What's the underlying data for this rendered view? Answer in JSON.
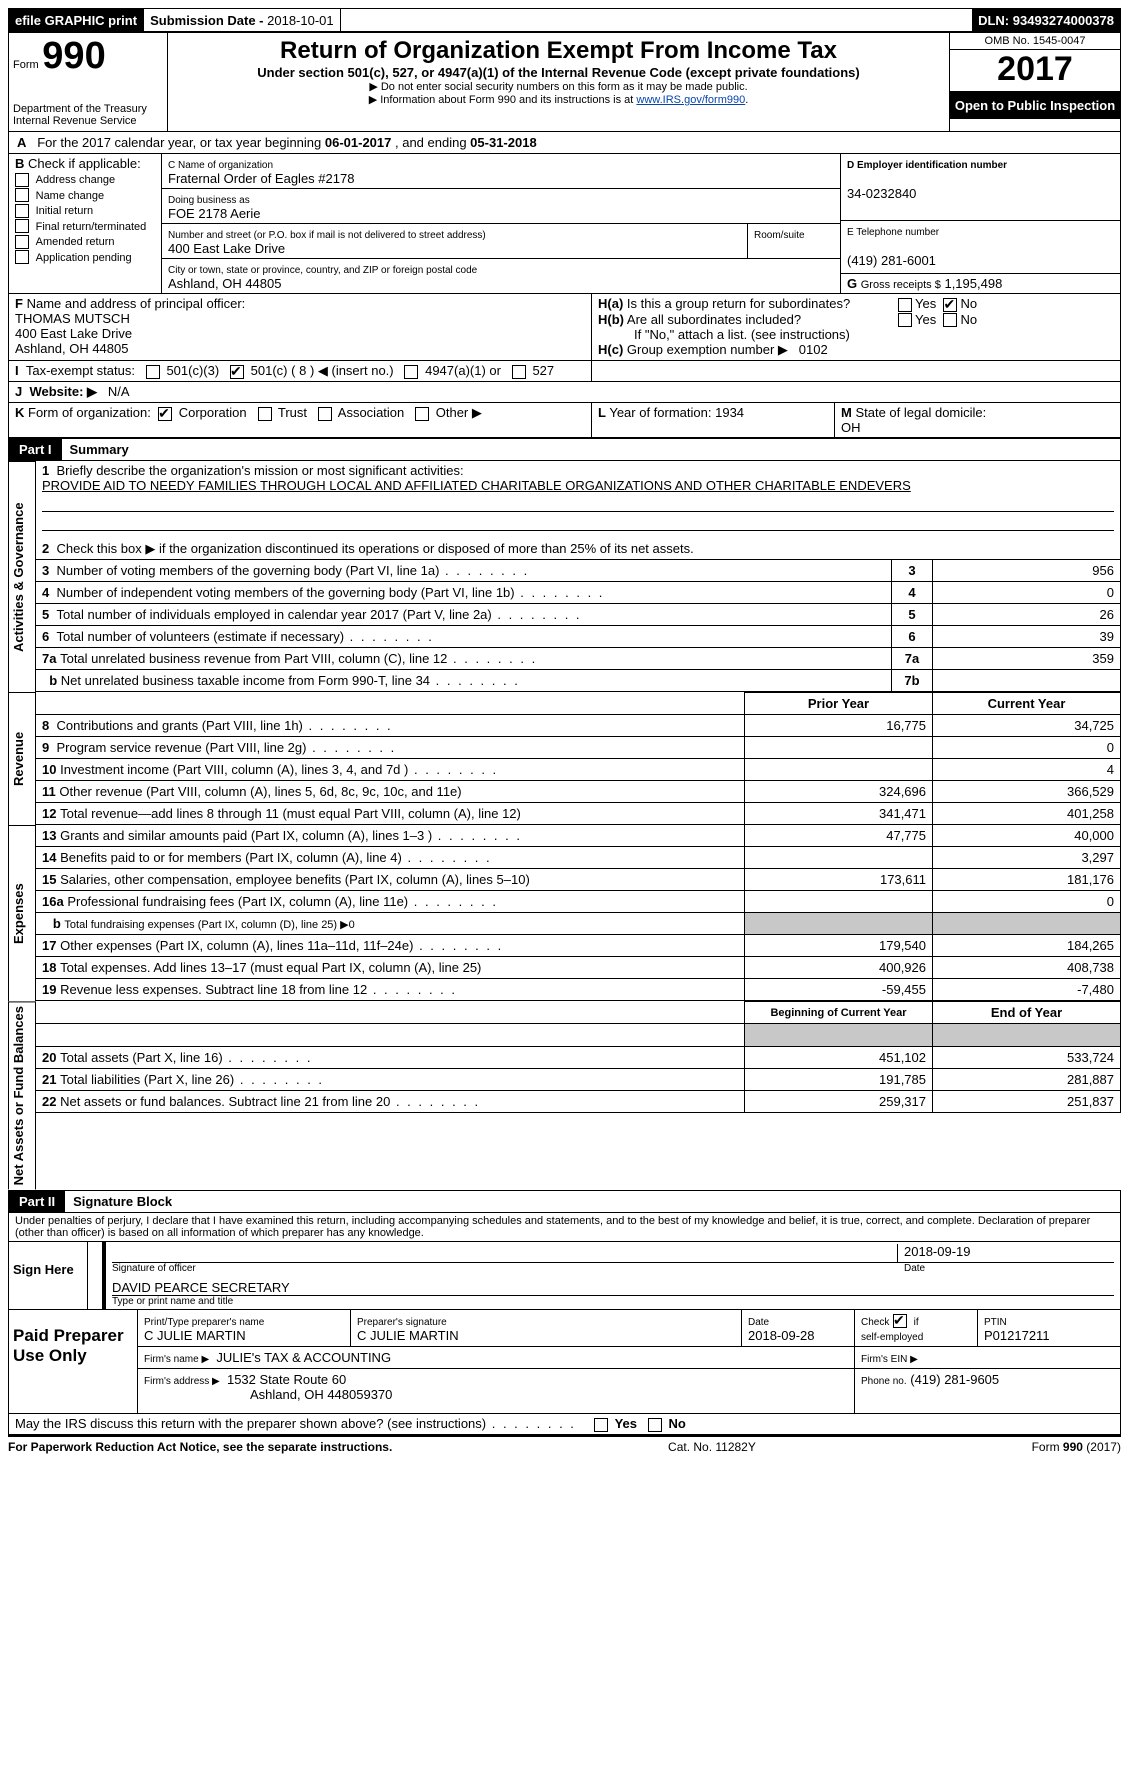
{
  "topbar": {
    "efile": "efile GRAPHIC print",
    "submission_label": "Submission Date -",
    "submission_date": "2018-10-01",
    "dln_label": "DLN:",
    "dln": "93493274000378"
  },
  "header": {
    "form_label": "Form",
    "form_no": "990",
    "dept1": "Department of the Treasury",
    "dept2": "Internal Revenue Service",
    "title": "Return of Organization Exempt From Income Tax",
    "subtitle": "Under section 501(c), 527, or 4947(a)(1) of the Internal Revenue Code (except private foundations)",
    "note1": "▶ Do not enter social security numbers on this form as it may be made public.",
    "note2_pre": "▶ Information about Form 990 and its instructions is at ",
    "note2_link": "www.IRS.gov/form990",
    "omb": "OMB No. 1545-0047",
    "year": "2017",
    "open": "Open to Public Inspection"
  },
  "periodline": {
    "a_label": "A",
    "text_pre": "For the 2017 calendar year, or tax year beginning ",
    "begin": "06-01-2017",
    "mid": " , and ending ",
    "end": "05-31-2018"
  },
  "blockB": {
    "label": "B",
    "check_if": "Check if applicable:",
    "opts": [
      "Address change",
      "Name change",
      "Initial return",
      "Final return/terminated",
      "Amended return",
      "Application pending"
    ]
  },
  "blockC": {
    "name_label": "C Name of organization",
    "name": "Fraternal Order of Eagles #2178",
    "dba_label": "Doing business as",
    "dba": "FOE 2178 Aerie",
    "street_label": "Number and street (or P.O. box if mail is not delivered to street address)",
    "room_label": "Room/suite",
    "street": "400 East Lake Drive",
    "city_label": "City or town, state or province, country, and ZIP or foreign postal code",
    "city": "Ashland, OH  44805"
  },
  "blockD": {
    "label": "D Employer identification number",
    "value": "34-0232840"
  },
  "blockE": {
    "label": "E Telephone number",
    "value": "(419) 281-6001"
  },
  "blockG": {
    "label": "G",
    "text": "Gross receipts $",
    "value": "1,195,498"
  },
  "blockF": {
    "label": "F",
    "text": "Name and address of principal officer:",
    "name": "THOMAS MUTSCH",
    "addr1": "400 East Lake Drive",
    "addr2": "Ashland, OH  44805"
  },
  "blockH": {
    "ha_label": "H(a)",
    "ha_text": "Is this a group return for subordinates?",
    "hb_label": "H(b)",
    "hb_text": "Are all subordinates included?",
    "hb_note": "If \"No,\" attach a list. (see instructions)",
    "hc_label": "H(c)",
    "hc_text": "Group exemption number ▶",
    "hc_value": "0102",
    "yes": "Yes",
    "no": "No"
  },
  "lineI": {
    "label": "I",
    "text": "Tax-exempt status:",
    "opts": {
      "a": "501(c)(3)",
      "b": "501(c) (",
      "b2": ") ◀ (insert no.)",
      "bval": "8",
      "c": "4947(a)(1) or",
      "d": "527"
    }
  },
  "lineJ": {
    "label": "J",
    "text": "Website: ▶",
    "value": "N/A"
  },
  "lineK": {
    "label": "K",
    "text": "Form of organization:",
    "opts": [
      "Corporation",
      "Trust",
      "Association",
      "Other ▶"
    ]
  },
  "lineL": {
    "label": "L",
    "text": "Year of formation:",
    "value": "1934"
  },
  "lineM": {
    "label": "M",
    "text": "State of legal domicile:",
    "value": "OH"
  },
  "part1": {
    "label": "Part I",
    "title": "Summary"
  },
  "vlabels": {
    "act": "Activities & Governance",
    "rev": "Revenue",
    "exp": "Expenses",
    "net": "Net Assets or Fund Balances"
  },
  "gov": {
    "l1": "Briefly describe the organization's mission or most significant activities:",
    "l1v": "PROVIDE AID TO NEEDY FAMILIES THROUGH LOCAL AND AFFILIATED CHARITABLE ORGANIZATIONS AND OTHER CHARITABLE ENDEVERS",
    "l2": "Check this box ▶           if the organization discontinued its operations or disposed of more than 25% of its net assets.",
    "l3": "Number of voting members of the governing body (Part VI, line 1a)",
    "l4": "Number of independent voting members of the governing body (Part VI, line 1b)",
    "l5": "Total number of individuals employed in calendar year 2017 (Part V, line 2a)",
    "l6": "Total number of volunteers (estimate if necessary)",
    "l7a": "Total unrelated business revenue from Part VIII, column (C), line 12",
    "l7b": "Net unrelated business taxable income from Form 990-T, line 34",
    "v3": "956",
    "v4": "0",
    "v5": "26",
    "v6": "39",
    "v7a": "359",
    "v7b": ""
  },
  "colheads": {
    "py": "Prior Year",
    "cy": "Current Year",
    "bcy": "Beginning of Current Year",
    "ey": "End of Year"
  },
  "rev": {
    "l8": {
      "t": "Contributions and grants (Part VIII, line 1h)",
      "p": "16,775",
      "c": "34,725"
    },
    "l9": {
      "t": "Program service revenue (Part VIII, line 2g)",
      "p": "",
      "c": "0"
    },
    "l10": {
      "t": "Investment income (Part VIII, column (A), lines 3, 4, and 7d )",
      "p": "",
      "c": "4"
    },
    "l11": {
      "t": "Other revenue (Part VIII, column (A), lines 5, 6d, 8c, 9c, 10c, and 11e)",
      "p": "324,696",
      "c": "366,529"
    },
    "l12": {
      "t": "Total revenue—add lines 8 through 11 (must equal Part VIII, column (A), line 12)",
      "p": "341,471",
      "c": "401,258"
    }
  },
  "exp": {
    "l13": {
      "t": "Grants and similar amounts paid (Part IX, column (A), lines 1–3 )",
      "p": "47,775",
      "c": "40,000"
    },
    "l14": {
      "t": "Benefits paid to or for members (Part IX, column (A), line 4)",
      "p": "",
      "c": "3,297"
    },
    "l15": {
      "t": "Salaries, other compensation, employee benefits (Part IX, column (A), lines 5–10)",
      "p": "173,611",
      "c": "181,176"
    },
    "l16a": {
      "t": "Professional fundraising fees (Part IX, column (A), line 11e)",
      "p": "",
      "c": "0"
    },
    "l16b": {
      "t": "Total fundraising expenses (Part IX, column (D), line 25) ▶0"
    },
    "l17": {
      "t": "Other expenses (Part IX, column (A), lines 11a–11d, 11f–24e)",
      "p": "179,540",
      "c": "184,265"
    },
    "l18": {
      "t": "Total expenses. Add lines 13–17 (must equal Part IX, column (A), line 25)",
      "p": "400,926",
      "c": "408,738"
    },
    "l19": {
      "t": "Revenue less expenses. Subtract line 18 from line 12",
      "p": "-59,455",
      "c": "-7,480"
    }
  },
  "net": {
    "l20": {
      "t": "Total assets (Part X, line 16)",
      "p": "451,102",
      "c": "533,724"
    },
    "l21": {
      "t": "Total liabilities (Part X, line 26)",
      "p": "191,785",
      "c": "281,887"
    },
    "l22": {
      "t": "Net assets or fund balances. Subtract line 21 from line 20",
      "p": "259,317",
      "c": "251,837"
    }
  },
  "part2": {
    "label": "Part II",
    "title": "Signature Block"
  },
  "sig": {
    "perjury": "Under penalties of perjury, I declare that I have examined this return, including accompanying schedules and statements, and to the best of my knowledge and belief, it is true, correct, and complete. Declaration of preparer (other than officer) is based on all information of which preparer has any knowledge.",
    "sign_here": "Sign Here",
    "sig_officer": "Signature of officer",
    "date_lbl": "Date",
    "sig_date": "2018-09-19",
    "name_title": "DAVID PEARCE SECRETARY",
    "type_print": "Type or print name and title",
    "paid": "Paid Preparer Use Only",
    "prep_name_lbl": "Print/Type preparer's name",
    "prep_name": "C JULIE MARTIN",
    "prep_sig_lbl": "Preparer's signature",
    "prep_sig": "C JULIE MARTIN",
    "prep_date_lbl": "Date",
    "prep_date": "2018-09-28",
    "check_lbl": "Check",
    "if": "if",
    "self": "self-employed",
    "ptin_lbl": "PTIN",
    "ptin": "P01217211",
    "firm_name_lbl": "Firm's name    ▶",
    "firm_name": "JULIE's TAX & ACCOUNTING",
    "firm_ein_lbl": "Firm's EIN ▶",
    "firm_addr_lbl": "Firm's address ▶",
    "firm_addr1": "1532 State Route 60",
    "firm_addr2": "Ashland, OH  448059370",
    "phone_lbl": "Phone no.",
    "phone": "(419) 281-9605",
    "discuss": "May the IRS discuss this return with the preparer shown above? (see instructions)"
  },
  "footer": {
    "left": "For Paperwork Reduction Act Notice, see the separate instructions.",
    "mid": "Cat. No. 11282Y",
    "right": "Form 990 (2017)"
  }
}
